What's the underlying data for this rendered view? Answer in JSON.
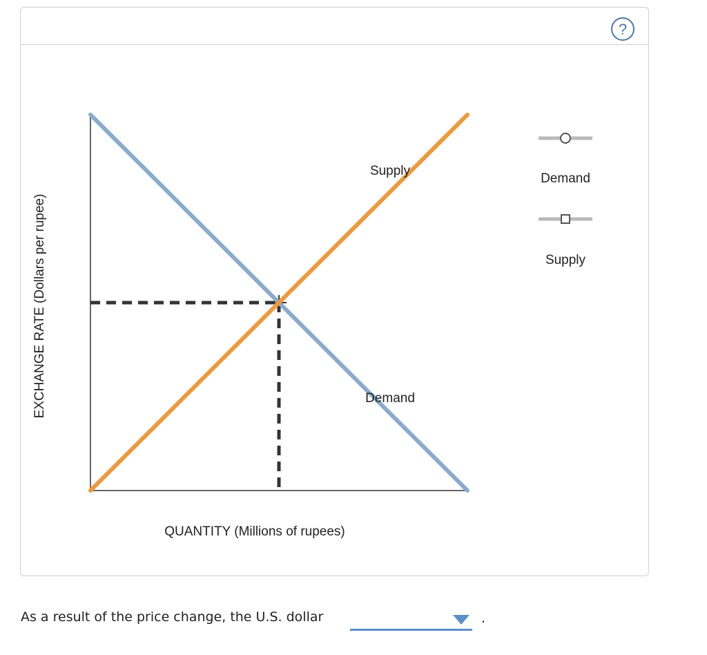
{
  "chart_data": {
    "type": "line",
    "xlabel": "QUANTITY (Millions of rupees)",
    "ylabel": "EXCHANGE RATE (Dollars per rupee)",
    "xlim": [
      0,
      100
    ],
    "ylim": [
      0,
      100
    ],
    "grid": false,
    "series": [
      {
        "name": "Demand",
        "color": "#8aabcd",
        "x": [
          0,
          100
        ],
        "y": [
          100,
          0
        ]
      },
      {
        "name": "Supply",
        "color": "#ec9a3c",
        "x": [
          0,
          100
        ],
        "y": [
          0,
          100
        ]
      }
    ],
    "equilibrium": {
      "x": 50,
      "y": 50
    }
  },
  "legend": {
    "demand_label": "Demand",
    "supply_label": "Supply"
  },
  "question": {
    "text": "As a result of the price change, the U.S. dollar",
    "selected_value": "",
    "period": "."
  },
  "help": {
    "icon": "question-icon",
    "glyph": "?"
  },
  "colors": {
    "help": "#4a78ab",
    "dropdown": "#5b8fca",
    "legend_track": "#b9b9b9"
  }
}
